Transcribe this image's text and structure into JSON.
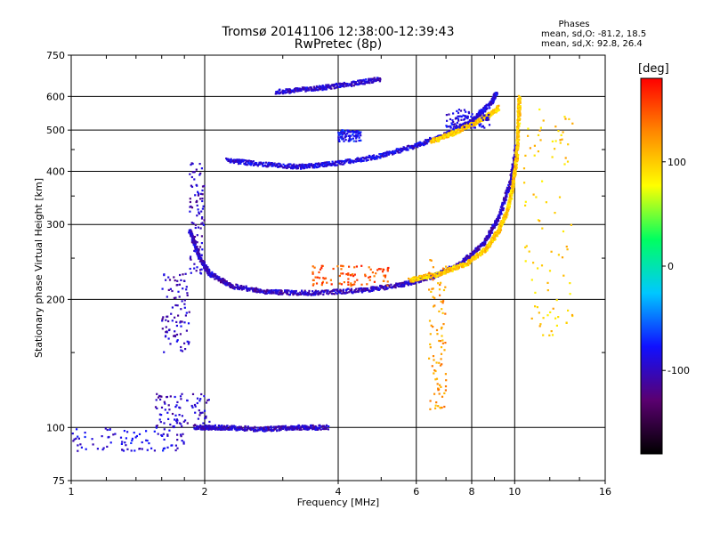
{
  "header": {
    "title": "Tromsø 20141106 12:38:00-12:39:43",
    "subtitle": "RwPretec (8p)"
  },
  "stats": {
    "title": "Phases",
    "o_line": "mean, sd,O: -81.2, 18.5",
    "x_line": "mean, sd,X:  92.8, 26.4"
  },
  "chart_data": {
    "type": "scatter",
    "xlabel": "Frequency [MHz]",
    "ylabel": "Stationary phase Virtual Height [km]",
    "x_scale": "log",
    "y_scale": "log",
    "xlim": [
      1,
      16
    ],
    "ylim": [
      75,
      750
    ],
    "x_ticks": [
      1,
      2,
      4,
      6,
      8,
      10,
      16
    ],
    "y_ticks": [
      75,
      100,
      200,
      300,
      400,
      500,
      600,
      750
    ],
    "grid": true,
    "colorbar": {
      "label": "[deg]",
      "range": [
        -180,
        180
      ],
      "ticks": [
        100,
        0,
        -100
      ],
      "colors": [
        "#000000",
        "#5a0070",
        "#1010ff",
        "#00c8ff",
        "#00ff60",
        "#ffff00",
        "#ff8800",
        "#ff0000"
      ]
    },
    "traces": [
      {
        "type": "curve",
        "phase": -100,
        "pts": [
          [
            1.85,
            290
          ],
          [
            1.95,
            250
          ],
          [
            2.05,
            230
          ],
          [
            2.3,
            215
          ],
          [
            2.8,
            208
          ],
          [
            3.5,
            207
          ],
          [
            4.5,
            210
          ],
          [
            5.5,
            216
          ],
          [
            6.5,
            226
          ],
          [
            7.5,
            242
          ],
          [
            8.5,
            270
          ],
          [
            9.2,
            310
          ],
          [
            9.8,
            380
          ],
          [
            10.1,
            460
          ]
        ]
      },
      {
        "type": "curve",
        "phase": -90,
        "pts": [
          [
            2.25,
            425
          ],
          [
            2.7,
            415
          ],
          [
            3.3,
            410
          ],
          [
            4.0,
            418
          ],
          [
            5.0,
            435
          ],
          [
            6.0,
            460
          ],
          [
            7.0,
            488
          ],
          [
            8.0,
            525
          ],
          [
            8.8,
            575
          ],
          [
            9.1,
            610
          ]
        ]
      },
      {
        "type": "curve",
        "phase": -95,
        "pts": [
          [
            2.9,
            615
          ],
          [
            3.5,
            625
          ],
          [
            4.2,
            640
          ],
          [
            5.0,
            660
          ]
        ]
      },
      {
        "type": "curve",
        "phase": -100,
        "pts": [
          [
            1.9,
            100
          ],
          [
            2.2,
            100
          ],
          [
            2.7,
            99
          ],
          [
            3.2,
            100
          ],
          [
            3.8,
            100
          ]
        ]
      },
      {
        "type": "curve",
        "phase": 100,
        "pts": [
          [
            5.8,
            222
          ],
          [
            6.8,
            230
          ],
          [
            7.8,
            243
          ],
          [
            8.6,
            262
          ],
          [
            9.2,
            290
          ],
          [
            9.6,
            320
          ],
          [
            9.9,
            365
          ],
          [
            10.1,
            430
          ],
          [
            10.2,
            520
          ],
          [
            10.25,
            600
          ]
        ]
      },
      {
        "type": "curve",
        "phase": 100,
        "pts": [
          [
            6.5,
            470
          ],
          [
            7.3,
            493
          ],
          [
            8.0,
            515
          ],
          [
            8.7,
            540
          ],
          [
            9.2,
            565
          ]
        ]
      },
      {
        "type": "band",
        "phase": 150,
        "x": [
          3.5,
          5.2
        ],
        "y": [
          215,
          240
        ]
      },
      {
        "type": "band",
        "phase": -100,
        "x": [
          1.6,
          1.85
        ],
        "y": [
          150,
          230
        ]
      },
      {
        "type": "band",
        "phase": -100,
        "x": [
          1.85,
          2.0
        ],
        "y": [
          230,
          420
        ]
      },
      {
        "type": "band",
        "phase": -100,
        "x": [
          1.55,
          2.05
        ],
        "y": [
          100,
          120
        ]
      },
      {
        "type": "band",
        "phase": -90,
        "x": [
          1.0,
          1.8
        ],
        "y": [
          88,
          100
        ]
      },
      {
        "type": "band",
        "phase": 120,
        "x": [
          6.4,
          7.0
        ],
        "y": [
          110,
          250
        ]
      },
      {
        "type": "band",
        "phase": 100,
        "x": [
          10.5,
          13.5
        ],
        "y": [
          160,
          560
        ]
      },
      {
        "type": "band",
        "phase": -80,
        "x": [
          4.0,
          4.5
        ],
        "y": [
          470,
          500
        ]
      },
      {
        "type": "band",
        "phase": -90,
        "x": [
          7.0,
          8.8
        ],
        "y": [
          505,
          560
        ]
      }
    ]
  }
}
